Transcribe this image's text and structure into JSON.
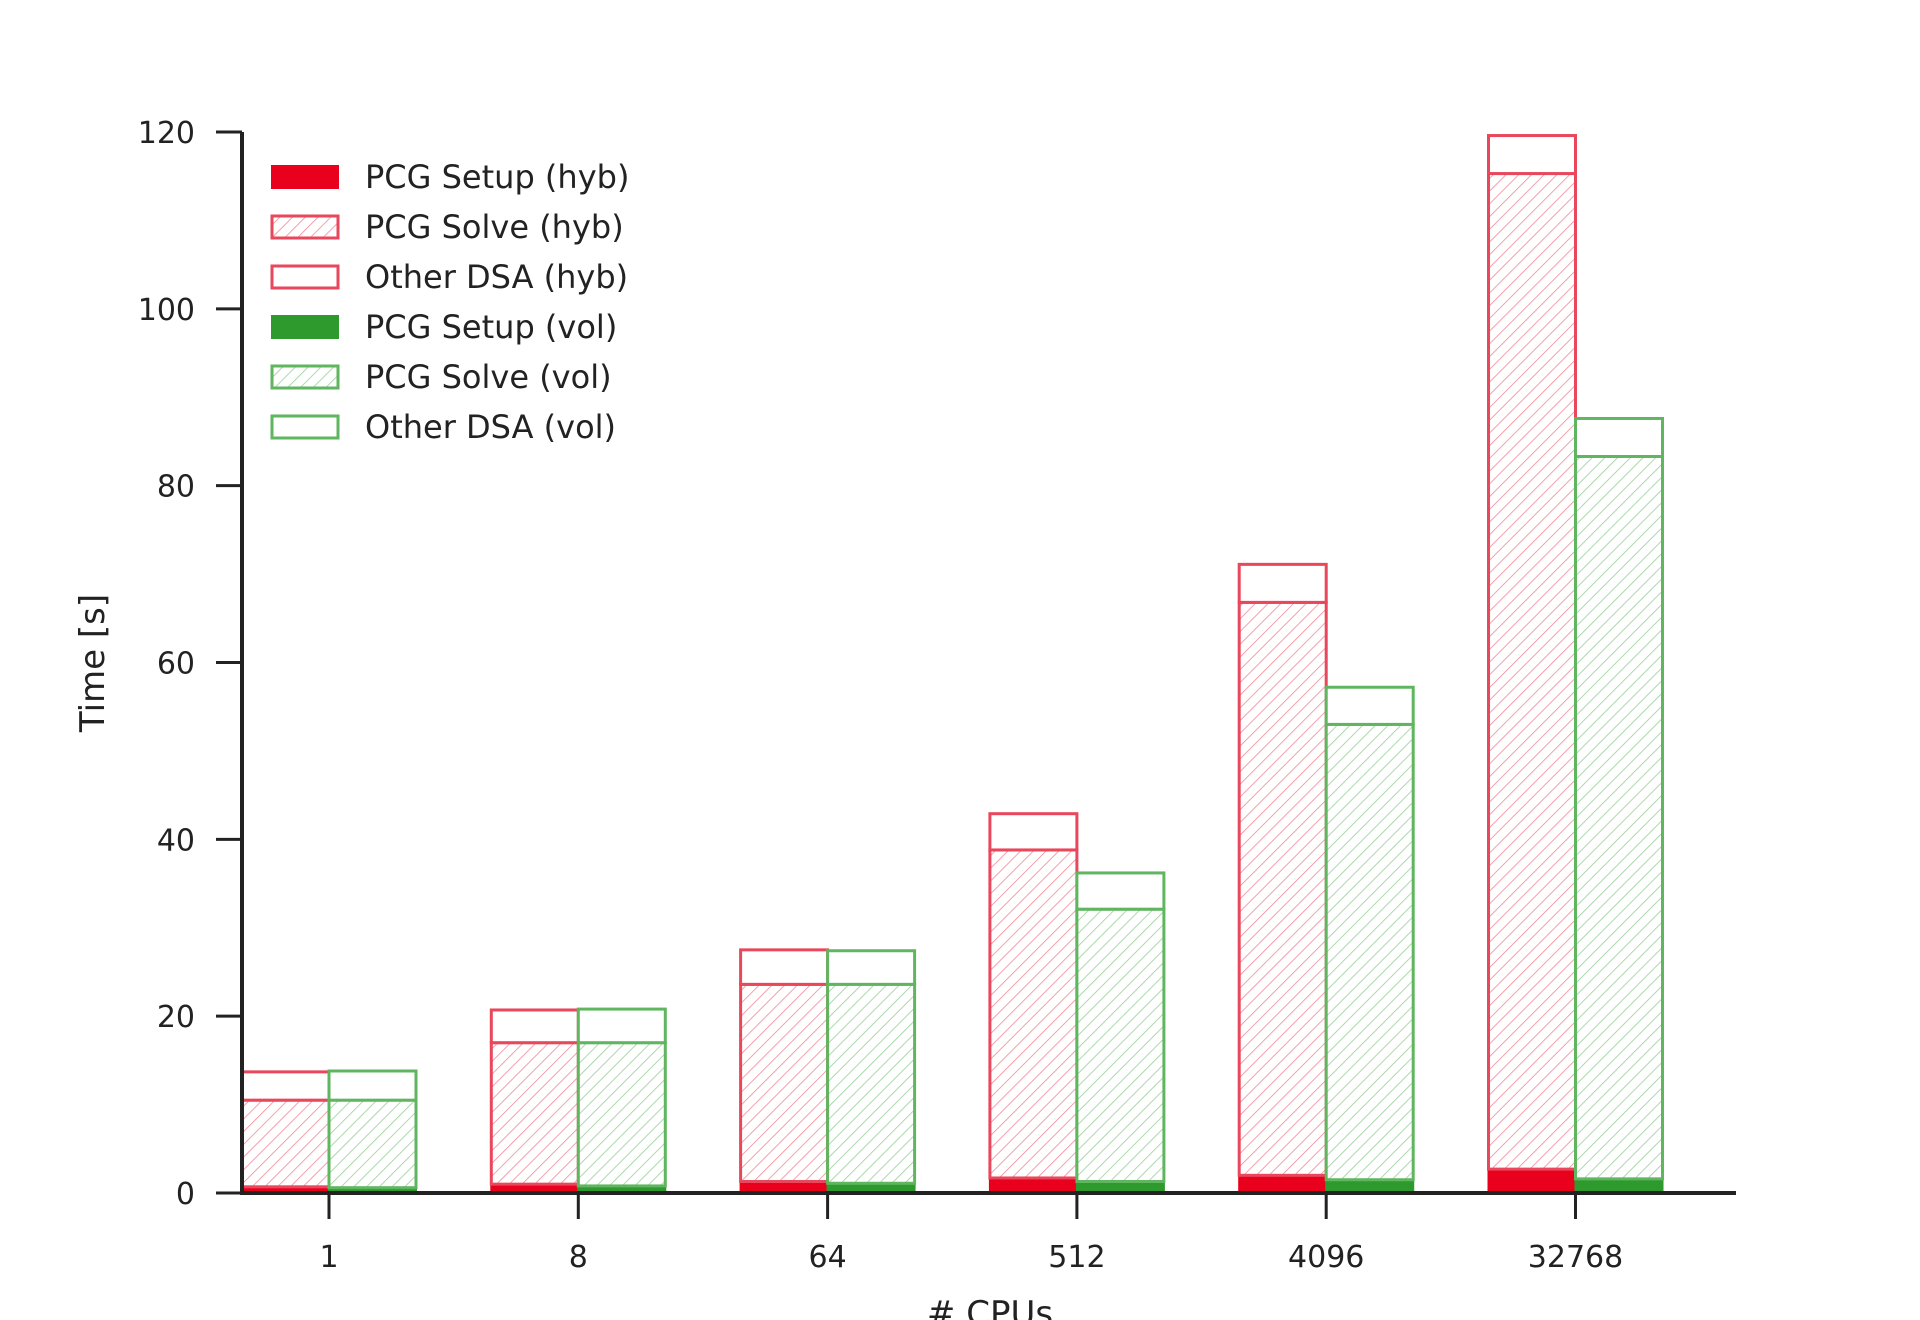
{
  "chart_data": {
    "type": "bar",
    "stacked": true,
    "grouped": true,
    "xlabel": "# CPUs",
    "ylabel": "Time [s]",
    "categories": [
      "1",
      "8",
      "64",
      "512",
      "4096",
      "32768"
    ],
    "ylim": [
      0,
      120
    ],
    "yticks": [
      0,
      20,
      40,
      60,
      80,
      100,
      120
    ],
    "grid": false,
    "legend_position": "top-left",
    "colors": {
      "hyb": "#e8001c",
      "vol": "#2e9a2e"
    },
    "groups": [
      {
        "name": "hyb",
        "series": [
          {
            "name": "PCG Setup (hyb)",
            "style": "filled",
            "values": [
              0.7,
              1.0,
              1.3,
              1.7,
              2.0,
              2.7
            ]
          },
          {
            "name": "PCG Solve (hyb)",
            "style": "hatched",
            "values": [
              9.8,
              16.0,
              22.3,
              37.1,
              64.8,
              112.6
            ]
          },
          {
            "name": "Other DSA (hyb)",
            "style": "outline",
            "values": [
              3.2,
              3.7,
              3.9,
              4.1,
              4.3,
              4.3
            ]
          }
        ]
      },
      {
        "name": "vol",
        "series": [
          {
            "name": "PCG Setup (vol)",
            "style": "filled",
            "values": [
              0.6,
              0.8,
              1.1,
              1.3,
              1.5,
              1.6
            ]
          },
          {
            "name": "PCG Solve (vol)",
            "style": "hatched",
            "values": [
              9.9,
              16.2,
              22.5,
              30.8,
              51.5,
              81.7
            ]
          },
          {
            "name": "Other DSA (vol)",
            "style": "outline",
            "values": [
              3.3,
              3.8,
              3.8,
              4.1,
              4.2,
              4.3
            ]
          }
        ]
      }
    ]
  }
}
